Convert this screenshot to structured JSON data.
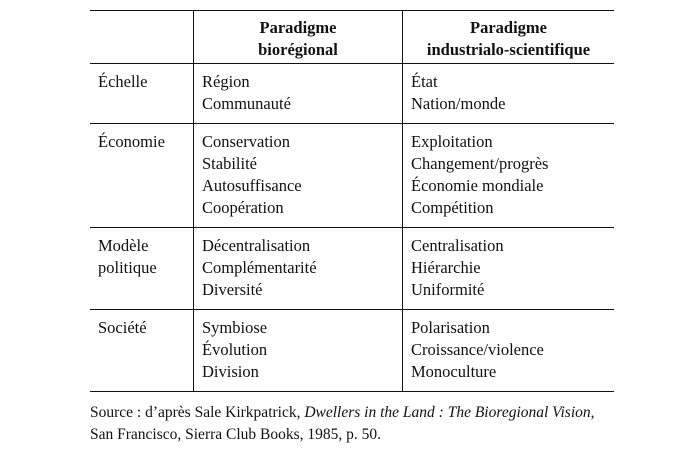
{
  "table": {
    "headers": [
      "",
      "Paradigme\nbiorégional",
      "Paradigme\nindustrialo-scientifique"
    ],
    "header_lines": [
      [],
      [
        "Paradigme",
        "biorégional"
      ],
      [
        "Paradigme",
        "industrialo-scientifique"
      ]
    ],
    "rows": [
      {
        "label": [
          "Échelle"
        ],
        "bio": [
          "Région",
          "Communauté"
        ],
        "indus": [
          "État",
          "Nation/monde"
        ]
      },
      {
        "label": [
          "Économie"
        ],
        "bio": [
          "Conservation",
          "Stabilité",
          "Autosuffisance",
          "Coopération"
        ],
        "indus": [
          "Exploitation",
          "Changement/progrès",
          "Économie mondiale",
          "Compétition"
        ]
      },
      {
        "label": [
          "Modèle",
          "politique"
        ],
        "bio": [
          "Décentralisation",
          "Complémentarité",
          "Diversité"
        ],
        "indus": [
          "Centralisation",
          "Hiérarchie",
          "Uniformité"
        ]
      },
      {
        "label": [
          "Société"
        ],
        "bio": [
          "Symbiose",
          "Évolution",
          "Division"
        ],
        "indus": [
          "Polarisation",
          "Croissance/violence",
          "Monoculture"
        ]
      }
    ]
  },
  "source": {
    "prefix": "Source : d’après Sale Kirkpatrick, ",
    "title": "Dwellers in the Land : The Bioregional Vision",
    "suffix": ",",
    "line2": "San Francisco, Sierra Club Books, 1985, p. 50."
  }
}
